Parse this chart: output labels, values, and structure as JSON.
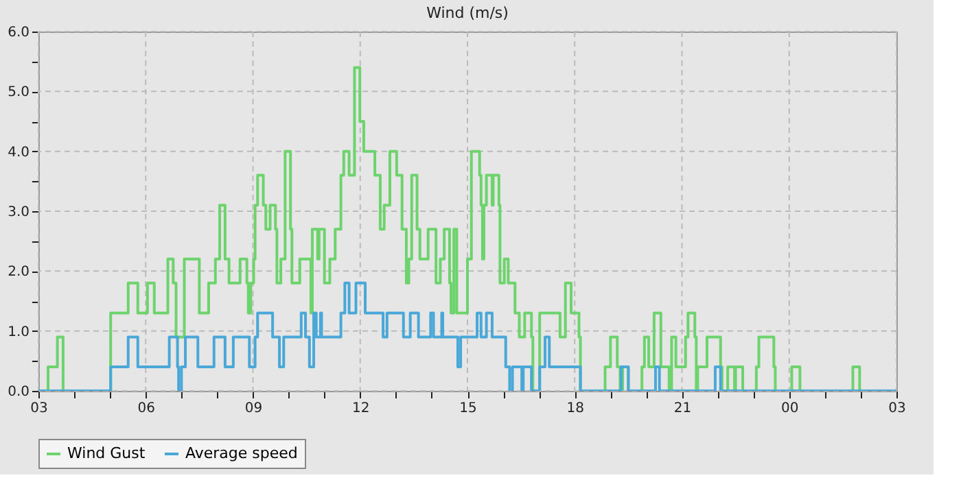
{
  "chart_data": {
    "type": "step",
    "title": "Wind (m/s)",
    "xlim": [
      3,
      27
    ],
    "xticks": [
      {
        "value": 3,
        "label": "03"
      },
      {
        "value": 4,
        "label": null
      },
      {
        "value": 5,
        "label": null
      },
      {
        "value": 6,
        "label": "06"
      },
      {
        "value": 7,
        "label": null
      },
      {
        "value": 8,
        "label": null
      },
      {
        "value": 9,
        "label": "09"
      },
      {
        "value": 10,
        "label": null
      },
      {
        "value": 11,
        "label": null
      },
      {
        "value": 12,
        "label": "12"
      },
      {
        "value": 13,
        "label": null
      },
      {
        "value": 14,
        "label": null
      },
      {
        "value": 15,
        "label": "15"
      },
      {
        "value": 16,
        "label": null
      },
      {
        "value": 17,
        "label": null
      },
      {
        "value": 18,
        "label": "18"
      },
      {
        "value": 19,
        "label": null
      },
      {
        "value": 20,
        "label": null
      },
      {
        "value": 21,
        "label": "21"
      },
      {
        "value": 22,
        "label": null
      },
      {
        "value": 23,
        "label": null
      },
      {
        "value": 24,
        "label": "00"
      },
      {
        "value": 25,
        "label": null
      },
      {
        "value": 26,
        "label": null
      },
      {
        "value": 27,
        "label": "03"
      }
    ],
    "ylim": [
      0,
      6
    ],
    "yticks": [
      {
        "value": 0,
        "label": "0.0"
      },
      {
        "value": 0.5,
        "label": null
      },
      {
        "value": 1,
        "label": "1.0"
      },
      {
        "value": 1.5,
        "label": null
      },
      {
        "value": 2,
        "label": "2.0"
      },
      {
        "value": 2.5,
        "label": null
      },
      {
        "value": 3,
        "label": "3.0"
      },
      {
        "value": 3.5,
        "label": null
      },
      {
        "value": 4,
        "label": "4.0"
      },
      {
        "value": 4.5,
        "label": null
      },
      {
        "value": 5,
        "label": "5.0"
      },
      {
        "value": 5.5,
        "label": null
      },
      {
        "value": 6,
        "label": "6.0"
      }
    ],
    "grid": true,
    "legend": "bottom",
    "line_style": "solid",
    "marker": "none",
    "series": [
      {
        "name": "Wind Gust",
        "color": "#6dd46d",
        "x": [
          3.0,
          3.27,
          3.53,
          3.69,
          5.02,
          5.51,
          5.78,
          6.05,
          6.24,
          6.62,
          6.77,
          6.85,
          7.08,
          7.5,
          7.76,
          7.95,
          8.07,
          8.22,
          8.33,
          8.64,
          8.83,
          8.87,
          8.94,
          9.02,
          9.06,
          9.13,
          9.29,
          9.36,
          9.48,
          9.63,
          9.67,
          9.78,
          9.9,
          10.05,
          10.09,
          10.31,
          10.62,
          10.66,
          10.81,
          10.85,
          11.0,
          11.15,
          11.3,
          11.46,
          11.54,
          11.69,
          11.84,
          11.99,
          12.1,
          12.41,
          12.56,
          12.67,
          12.83,
          13.02,
          13.17,
          13.29,
          13.36,
          13.44,
          13.59,
          13.67,
          13.9,
          14.12,
          14.24,
          14.35,
          14.5,
          14.54,
          14.62,
          14.7,
          15.0,
          15.11,
          15.34,
          15.38,
          15.42,
          15.46,
          15.53,
          15.69,
          15.72,
          15.88,
          15.91,
          16.03,
          16.14,
          16.33,
          16.45,
          16.6,
          16.79,
          16.83,
          17.02,
          17.59,
          17.74,
          17.9,
          18.12,
          18.16,
          18.85,
          19.0,
          19.19,
          19.27,
          19.34,
          19.5,
          19.88,
          19.95,
          20.07,
          20.22,
          20.41,
          20.64,
          20.71,
          20.83,
          21.1,
          21.17,
          21.36,
          21.4,
          21.44,
          21.7,
          22.08,
          22.12,
          22.28,
          22.47,
          22.5,
          22.7,
          23.08,
          23.15,
          23.57,
          23.61,
          24.07,
          24.3,
          25.78,
          25.97,
          27.0
        ],
        "values": [
          0,
          0.4,
          0.9,
          0,
          1.3,
          1.8,
          1.3,
          1.8,
          1.3,
          2.2,
          1.8,
          0.9,
          2.2,
          1.3,
          1.8,
          2.2,
          3.1,
          2.2,
          1.8,
          2.2,
          1.8,
          1.3,
          1.8,
          2.2,
          3.1,
          3.6,
          3.1,
          2.7,
          3.1,
          2.7,
          1.8,
          2.2,
          4.0,
          2.7,
          1.8,
          2.2,
          1.3,
          2.7,
          2.2,
          2.7,
          1.8,
          2.2,
          2.7,
          3.6,
          4.0,
          3.6,
          5.4,
          4.5,
          4.0,
          3.6,
          2.7,
          3.1,
          4.0,
          3.6,
          2.7,
          1.8,
          2.2,
          3.6,
          2.7,
          2.2,
          2.7,
          1.8,
          2.2,
          2.7,
          1.8,
          1.3,
          2.7,
          1.3,
          2.2,
          4.0,
          3.6,
          3.1,
          2.2,
          3.1,
          3.6,
          3.1,
          3.6,
          3.1,
          1.8,
          2.2,
          1.8,
          1.3,
          0.9,
          1.3,
          0.9,
          0,
          1.3,
          0.9,
          1.8,
          1.3,
          0.9,
          0,
          0.4,
          0.9,
          0.4,
          0,
          0.4,
          0,
          0.4,
          0.9,
          0.4,
          1.3,
          0.4,
          0,
          0.9,
          0.4,
          0.9,
          1.3,
          0.9,
          0,
          0.4,
          0.9,
          0.4,
          0,
          0.4,
          0,
          0.4,
          0,
          0.4,
          0.9,
          0.4,
          0,
          0.4,
          0,
          0.4,
          0,
          0
        ]
      },
      {
        "name": "Average speed",
        "color": "#4aa8d8",
        "x": [
          3.0,
          5.02,
          5.51,
          5.78,
          6.66,
          6.89,
          6.92,
          7.0,
          7.11,
          7.46,
          7.91,
          8.22,
          8.45,
          8.9,
          9.06,
          9.13,
          9.55,
          9.74,
          9.86,
          10.35,
          10.47,
          10.58,
          10.7,
          10.77,
          10.89,
          10.92,
          11.46,
          11.57,
          11.69,
          11.88,
          12.14,
          12.64,
          12.75,
          13.21,
          13.4,
          13.63,
          13.97,
          14.05,
          14.28,
          14.31,
          14.73,
          14.81,
          15.27,
          15.38,
          15.53,
          15.69,
          16.07,
          16.18,
          16.26,
          16.52,
          16.56,
          16.79,
          17.02,
          17.17,
          17.29,
          18.16,
          19.3,
          19.5,
          20.26,
          20.37,
          21.93,
          22.08,
          27.0
        ],
        "values": [
          0,
          0.4,
          0.9,
          0.4,
          0.9,
          0.4,
          0,
          0.4,
          0.9,
          0.4,
          0.9,
          0.4,
          0.9,
          0.4,
          0.9,
          1.3,
          0.9,
          0.4,
          0.9,
          1.3,
          0.9,
          0.4,
          1.3,
          0.9,
          1.3,
          0.9,
          1.3,
          1.8,
          1.3,
          1.8,
          1.3,
          0.9,
          1.3,
          0.9,
          1.3,
          0.9,
          1.3,
          0.9,
          1.3,
          0.9,
          0.4,
          0.9,
          1.3,
          0.9,
          1.3,
          0.9,
          0.4,
          0,
          0.4,
          0,
          0.4,
          0,
          0.4,
          0.9,
          0.4,
          0,
          0.4,
          0,
          0.4,
          0,
          0.4,
          0,
          0
        ]
      }
    ]
  }
}
